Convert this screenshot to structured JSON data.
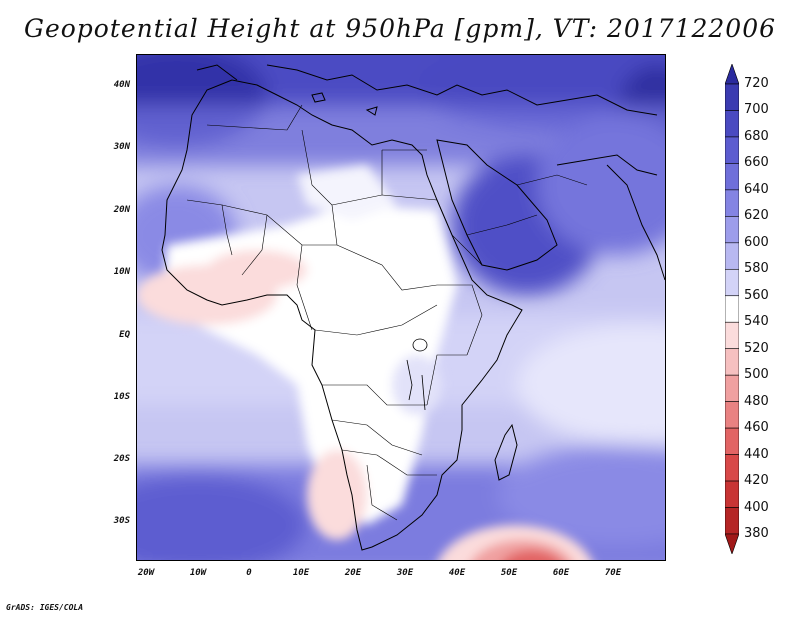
{
  "title": "Geopotential Height at 950hPa [gpm], VT: 2017122006",
  "credit": "GrADS: IGES/COLA",
  "lat_labels": [
    "40N",
    "30N",
    "20N",
    "10N",
    "EQ",
    "10S",
    "20S",
    "30S"
  ],
  "lon_labels": [
    "20W",
    "10W",
    "0",
    "10E",
    "20E",
    "30E",
    "40E",
    "50E",
    "60E",
    "70E"
  ],
  "colorbar": {
    "labels": [
      "720",
      "700",
      "680",
      "660",
      "640",
      "620",
      "600",
      "580",
      "560",
      "540",
      "520",
      "500",
      "480",
      "460",
      "440",
      "420",
      "400",
      "380"
    ],
    "colors": [
      "#2b2b9e",
      "#3b3bb1",
      "#4a4ac1",
      "#5c5cd0",
      "#6f6fda",
      "#8484e3",
      "#9d9deb",
      "#b8b8f1",
      "#d3d3f7",
      "#ffffff",
      "#fbdcdc",
      "#f6c0c0",
      "#f0a0a0",
      "#e98282",
      "#e26464",
      "#d84848",
      "#c83434",
      "#b52525",
      "#a01818"
    ]
  },
  "map": {
    "type": "geopotential_height_map",
    "level": "950hPa",
    "units": "gpm",
    "valid_time": "2017122006",
    "lon_range": [
      -22,
      80
    ],
    "lat_range": [
      -37,
      45
    ]
  }
}
